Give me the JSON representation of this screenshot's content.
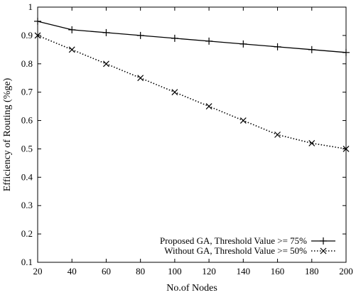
{
  "chart_data": {
    "type": "line",
    "title": "",
    "xlabel": "No.of Nodes",
    "ylabel": "Efficiency of Routing (%ge)",
    "xlim": [
      20,
      200
    ],
    "ylim": [
      0.1,
      1
    ],
    "x_ticks": [
      20,
      40,
      60,
      80,
      100,
      120,
      140,
      160,
      180,
      200
    ],
    "y_ticks": [
      "0.1",
      "0.2",
      "0.3",
      "0.4",
      "0.5",
      "0.6",
      "0.7",
      "0.8",
      "0.9",
      "1"
    ],
    "legend_position": "bottom-right",
    "grid": false,
    "x": [
      20,
      40,
      60,
      80,
      100,
      120,
      140,
      160,
      180,
      200
    ],
    "series": [
      {
        "name": "Proposed GA, Threshold Value >= 75%",
        "values": [
          0.95,
          0.92,
          0.91,
          0.9,
          0.89,
          0.88,
          0.87,
          0.86,
          0.85,
          0.84
        ],
        "line_style": "solid",
        "marker": "plus",
        "color": "#000000"
      },
      {
        "name": "Without GA, Threshold Value >= 50%",
        "values": [
          0.9,
          0.85,
          0.8,
          0.75,
          0.7,
          0.65,
          0.6,
          0.55,
          0.52,
          0.5
        ],
        "line_style": "dotted",
        "marker": "cross",
        "color": "#000000"
      }
    ]
  }
}
